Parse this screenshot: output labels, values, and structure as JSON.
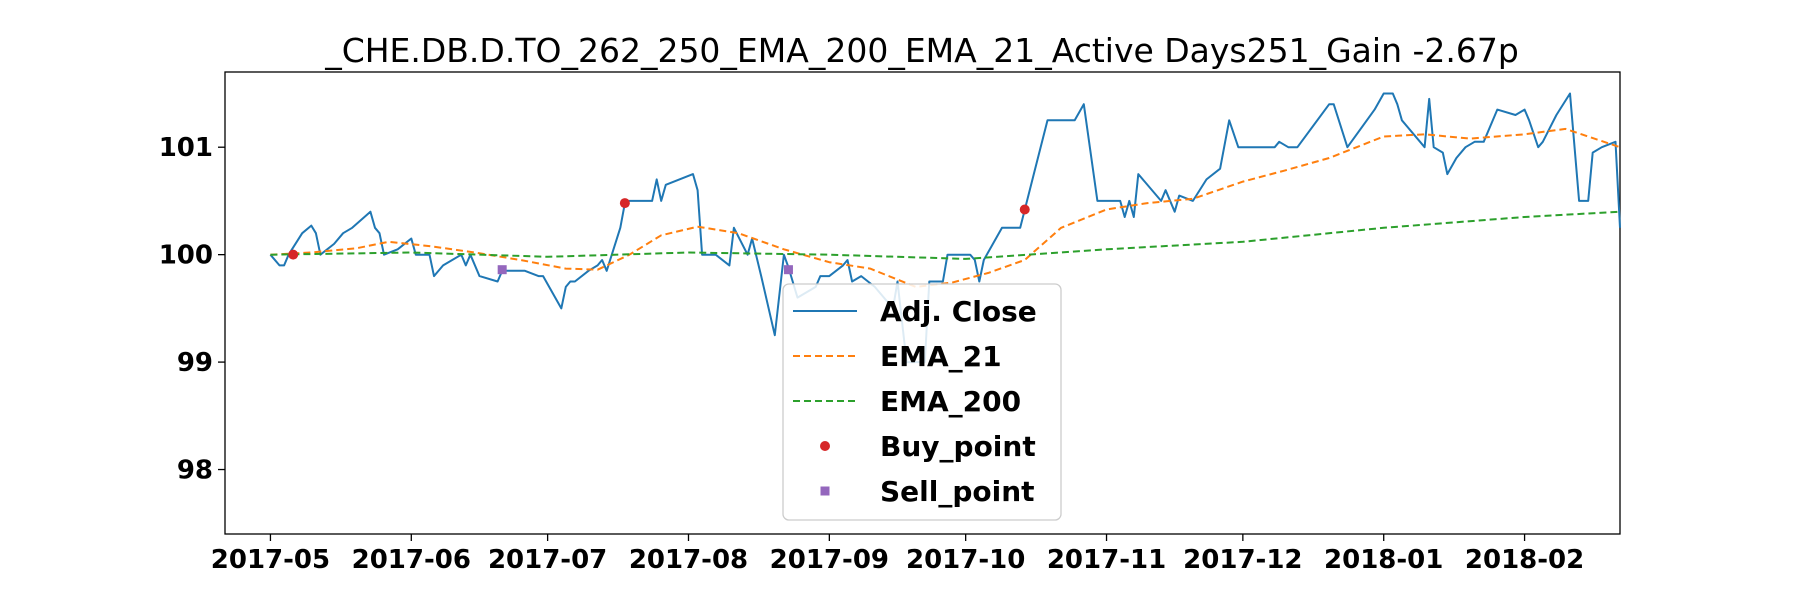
{
  "chart_data": {
    "type": "line",
    "title": "_CHE.DB.D.TO_262_250_EMA_200_EMA_21_Active Days251_Gain  -2.67p",
    "xlabel": "",
    "ylabel": "",
    "x_ticks": [
      "2017-05",
      "2017-06",
      "2017-07",
      "2017-08",
      "2017-09",
      "2017-10",
      "2017-11",
      "2017-12",
      "2018-01",
      "2018-02"
    ],
    "y_ticks": [
      98,
      99,
      100,
      101
    ],
    "xlim": [
      "2017-04-21",
      "2018-02-22"
    ],
    "ylim": [
      97.4,
      101.7
    ],
    "grid": false,
    "legend_position": "lower-center",
    "series": [
      {
        "name": "Adj. Close",
        "color": "#1f77b4",
        "style": "solid",
        "points": [
          [
            "2017-05-01",
            100.0
          ],
          [
            "2017-05-03",
            99.9
          ],
          [
            "2017-05-04",
            99.9
          ],
          [
            "2017-05-05",
            100.0
          ],
          [
            "2017-05-08",
            100.2
          ],
          [
            "2017-05-10",
            100.27
          ],
          [
            "2017-05-11",
            100.2
          ],
          [
            "2017-05-12",
            100.0
          ],
          [
            "2017-05-15",
            100.1
          ],
          [
            "2017-05-17",
            100.2
          ],
          [
            "2017-05-19",
            100.25
          ],
          [
            "2017-05-23",
            100.4
          ],
          [
            "2017-05-24",
            100.25
          ],
          [
            "2017-05-25",
            100.2
          ],
          [
            "2017-05-26",
            100.0
          ],
          [
            "2017-05-29",
            100.05
          ],
          [
            "2017-06-01",
            100.15
          ],
          [
            "2017-06-02",
            100.0
          ],
          [
            "2017-06-05",
            100.0
          ],
          [
            "2017-06-06",
            99.8
          ],
          [
            "2017-06-08",
            99.9
          ],
          [
            "2017-06-12",
            100.0
          ],
          [
            "2017-06-13",
            99.9
          ],
          [
            "2017-06-14",
            100.0
          ],
          [
            "2017-06-16",
            99.8
          ],
          [
            "2017-06-20",
            99.75
          ],
          [
            "2017-06-21",
            99.85
          ],
          [
            "2017-06-26",
            99.85
          ],
          [
            "2017-06-29",
            99.8
          ],
          [
            "2017-06-30",
            99.8
          ],
          [
            "2017-07-04",
            99.5
          ],
          [
            "2017-07-05",
            99.7
          ],
          [
            "2017-07-06",
            99.75
          ],
          [
            "2017-07-07",
            99.75
          ],
          [
            "2017-07-10",
            99.85
          ],
          [
            "2017-07-12",
            99.9
          ],
          [
            "2017-07-13",
            99.95
          ],
          [
            "2017-07-14",
            99.85
          ],
          [
            "2017-07-17",
            100.25
          ],
          [
            "2017-07-18",
            100.48
          ],
          [
            "2017-07-19",
            100.5
          ],
          [
            "2017-07-20",
            100.5
          ],
          [
            "2017-07-24",
            100.5
          ],
          [
            "2017-07-25",
            100.7
          ],
          [
            "2017-07-26",
            100.5
          ],
          [
            "2017-07-27",
            100.65
          ],
          [
            "2017-08-02",
            100.75
          ],
          [
            "2017-08-03",
            100.6
          ],
          [
            "2017-08-04",
            100.0
          ],
          [
            "2017-08-07",
            100.0
          ],
          [
            "2017-08-10",
            99.9
          ],
          [
            "2017-08-11",
            100.25
          ],
          [
            "2017-08-14",
            100.0
          ],
          [
            "2017-08-15",
            100.15
          ],
          [
            "2017-08-17",
            99.8
          ],
          [
            "2017-08-20",
            99.25
          ],
          [
            "2017-08-22",
            100.0
          ],
          [
            "2017-08-23",
            99.88
          ],
          [
            "2017-08-25",
            99.6
          ],
          [
            "2017-08-29",
            99.7
          ],
          [
            "2017-08-30",
            99.8
          ],
          [
            "2017-09-01",
            99.8
          ],
          [
            "2017-09-04",
            99.9
          ],
          [
            "2017-09-05",
            99.95
          ],
          [
            "2017-09-06",
            99.75
          ],
          [
            "2017-09-08",
            99.8
          ],
          [
            "2017-09-11",
            99.7
          ],
          [
            "2017-09-13",
            99.6
          ],
          [
            "2017-09-15",
            99.5
          ],
          [
            "2017-09-16",
            99.75
          ],
          [
            "2017-09-18",
            99.0
          ],
          [
            "2017-09-22",
            99.0
          ],
          [
            "2017-09-23",
            99.75
          ],
          [
            "2017-09-26",
            99.75
          ],
          [
            "2017-09-27",
            100.0
          ],
          [
            "2017-10-02",
            100.0
          ],
          [
            "2017-10-03",
            99.95
          ],
          [
            "2017-10-04",
            99.75
          ],
          [
            "2017-10-05",
            99.95
          ],
          [
            "2017-10-09",
            100.25
          ],
          [
            "2017-10-13",
            100.25
          ],
          [
            "2017-10-16",
            100.75
          ],
          [
            "2017-10-19",
            101.25
          ],
          [
            "2017-10-25",
            101.25
          ],
          [
            "2017-10-27",
            101.4
          ],
          [
            "2017-10-30",
            100.5
          ],
          [
            "2017-11-01",
            100.5
          ],
          [
            "2017-11-04",
            100.5
          ],
          [
            "2017-11-05",
            100.35
          ],
          [
            "2017-11-06",
            100.5
          ],
          [
            "2017-11-07",
            100.35
          ],
          [
            "2017-11-08",
            100.75
          ],
          [
            "2017-11-13",
            100.5
          ],
          [
            "2017-11-14",
            100.6
          ],
          [
            "2017-11-16",
            100.4
          ],
          [
            "2017-11-17",
            100.55
          ],
          [
            "2017-11-20",
            100.5
          ],
          [
            "2017-11-23",
            100.7
          ],
          [
            "2017-11-26",
            100.8
          ],
          [
            "2017-11-28",
            101.25
          ],
          [
            "2017-11-30",
            101.0
          ],
          [
            "2017-12-01",
            101.0
          ],
          [
            "2017-12-05",
            101.0
          ],
          [
            "2017-12-08",
            101.0
          ],
          [
            "2017-12-09",
            101.05
          ],
          [
            "2017-12-11",
            101.0
          ],
          [
            "2017-12-13",
            101.0
          ],
          [
            "2017-12-20",
            101.4
          ],
          [
            "2017-12-21",
            101.4
          ],
          [
            "2017-12-24",
            101.0
          ],
          [
            "2017-12-30",
            101.35
          ],
          [
            "2018-01-01",
            101.5
          ],
          [
            "2018-01-03",
            101.5
          ],
          [
            "2018-01-04",
            101.4
          ],
          [
            "2018-01-05",
            101.25
          ],
          [
            "2018-01-10",
            101.0
          ],
          [
            "2018-01-11",
            101.45
          ],
          [
            "2018-01-12",
            101.0
          ],
          [
            "2018-01-14",
            100.95
          ],
          [
            "2018-01-15",
            100.75
          ],
          [
            "2018-01-17",
            100.9
          ],
          [
            "2018-01-19",
            101.0
          ],
          [
            "2018-01-21",
            101.05
          ],
          [
            "2018-01-23",
            101.05
          ],
          [
            "2018-01-26",
            101.35
          ],
          [
            "2018-01-30",
            101.3
          ],
          [
            "2018-02-01",
            101.35
          ],
          [
            "2018-02-02",
            101.25
          ],
          [
            "2018-02-04",
            101.0
          ],
          [
            "2018-02-05",
            101.05
          ],
          [
            "2018-02-08",
            101.3
          ],
          [
            "2018-02-11",
            101.5
          ],
          [
            "2018-02-13",
            100.5
          ],
          [
            "2018-02-15",
            100.5
          ],
          [
            "2018-02-16",
            100.95
          ],
          [
            "2018-02-18",
            101.0
          ],
          [
            "2018-02-21",
            101.05
          ],
          [
            "2018-02-22",
            100.25
          ]
        ]
      },
      {
        "name": "EMA_21",
        "color": "#ff7f0e",
        "style": "dashed",
        "points": [
          [
            "2017-05-01",
            100.0
          ],
          [
            "2017-05-10",
            100.02
          ],
          [
            "2017-05-20",
            100.06
          ],
          [
            "2017-05-27",
            100.12
          ],
          [
            "2017-06-05",
            100.08
          ],
          [
            "2017-06-15",
            100.02
          ],
          [
            "2017-06-25",
            99.95
          ],
          [
            "2017-07-05",
            99.87
          ],
          [
            "2017-07-12",
            99.86
          ],
          [
            "2017-07-19",
            100.0
          ],
          [
            "2017-07-26",
            100.18
          ],
          [
            "2017-08-03",
            100.26
          ],
          [
            "2017-08-12",
            100.2
          ],
          [
            "2017-08-22",
            100.05
          ],
          [
            "2017-09-01",
            99.93
          ],
          [
            "2017-09-10",
            99.87
          ],
          [
            "2017-09-20",
            99.7
          ],
          [
            "2017-09-28",
            99.74
          ],
          [
            "2017-10-06",
            99.83
          ],
          [
            "2017-10-14",
            99.95
          ],
          [
            "2017-10-22",
            100.25
          ],
          [
            "2017-11-01",
            100.42
          ],
          [
            "2017-11-10",
            100.48
          ],
          [
            "2017-11-20",
            100.52
          ],
          [
            "2017-12-01",
            100.68
          ],
          [
            "2017-12-10",
            100.78
          ],
          [
            "2017-12-20",
            100.9
          ],
          [
            "2018-01-01",
            101.1
          ],
          [
            "2018-01-10",
            101.12
          ],
          [
            "2018-01-20",
            101.08
          ],
          [
            "2018-02-01",
            101.12
          ],
          [
            "2018-02-10",
            101.17
          ],
          [
            "2018-02-22",
            101.0
          ]
        ]
      },
      {
        "name": "EMA_200",
        "color": "#2ca02c",
        "style": "dashed",
        "points": [
          [
            "2017-05-01",
            100.0
          ],
          [
            "2017-06-01",
            100.02
          ],
          [
            "2017-07-01",
            99.98
          ],
          [
            "2017-08-01",
            100.02
          ],
          [
            "2017-09-01",
            100.0
          ],
          [
            "2017-10-01",
            99.96
          ],
          [
            "2017-11-01",
            100.05
          ],
          [
            "2017-12-01",
            100.12
          ],
          [
            "2018-01-01",
            100.25
          ],
          [
            "2018-02-01",
            100.35
          ],
          [
            "2018-02-22",
            100.4
          ]
        ]
      },
      {
        "name": "Buy_point",
        "color": "#d62728",
        "style": "marker-circle",
        "points": [
          [
            "2017-05-06",
            100.0
          ],
          [
            "2017-07-18",
            100.48
          ],
          [
            "2017-10-14",
            100.42
          ]
        ]
      },
      {
        "name": "Sell_point",
        "color": "#9467bd",
        "style": "marker-square",
        "points": [
          [
            "2017-06-21",
            99.86
          ],
          [
            "2017-08-23",
            99.86
          ]
        ]
      }
    ]
  }
}
